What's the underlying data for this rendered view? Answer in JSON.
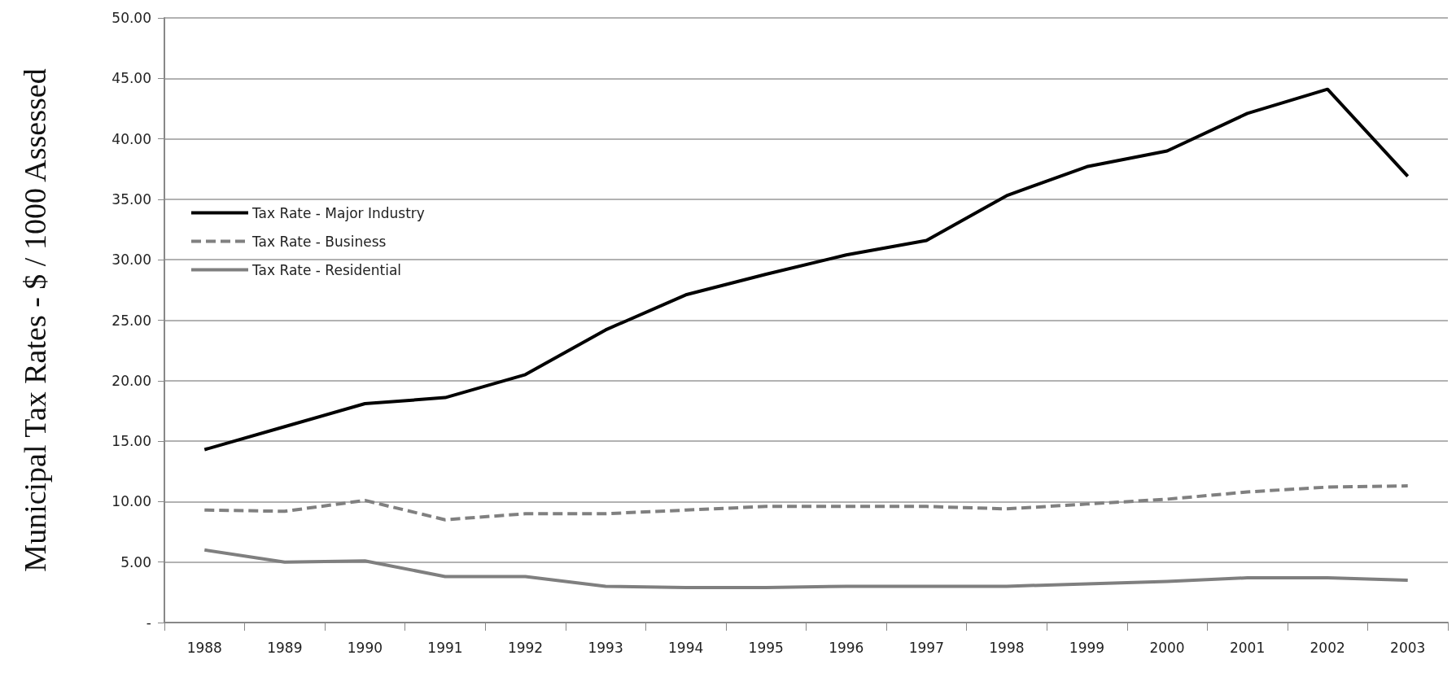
{
  "chart_data": {
    "type": "line",
    "ylabel": "Municipal Tax Rates - $ / 1000 Assessed",
    "categories": [
      "1988",
      "1989",
      "1990",
      "1991",
      "1992",
      "1993",
      "1994",
      "1995",
      "1996",
      "1997",
      "1998",
      "1999",
      "2000",
      "2001",
      "2002",
      "2003"
    ],
    "series": [
      {
        "name": "Tax Rate - Major Industry",
        "color": "#000000",
        "line_style": "solid",
        "values": [
          14.3,
          16.2,
          18.1,
          18.6,
          20.5,
          24.2,
          27.1,
          28.8,
          30.4,
          31.6,
          35.3,
          37.7,
          39.0,
          42.1,
          44.1,
          36.9
        ]
      },
      {
        "name": "Tax Rate - Business",
        "color": "#808080",
        "line_style": "dashed",
        "values": [
          9.3,
          9.2,
          10.1,
          8.5,
          9.0,
          9.0,
          9.3,
          9.6,
          9.6,
          9.6,
          9.4,
          9.8,
          10.2,
          10.8,
          11.2,
          11.3
        ]
      },
      {
        "name": "Tax Rate - Residential",
        "color": "#7f7f7f",
        "line_style": "solid",
        "values": [
          6.0,
          5.0,
          5.1,
          3.8,
          3.8,
          3.0,
          2.9,
          2.9,
          3.0,
          3.0,
          3.0,
          3.2,
          3.4,
          3.7,
          3.7,
          3.5
        ]
      }
    ],
    "ylim": [
      0,
      50
    ],
    "yticks": [
      {
        "value": 0,
        "label": "-"
      },
      {
        "value": 5,
        "label": "5.00"
      },
      {
        "value": 10,
        "label": "10.00"
      },
      {
        "value": 15,
        "label": "15.00"
      },
      {
        "value": 20,
        "label": "20.00"
      },
      {
        "value": 25,
        "label": "25.00"
      },
      {
        "value": 30,
        "label": "30.00"
      },
      {
        "value": 35,
        "label": "35.00"
      },
      {
        "value": 40,
        "label": "40.00"
      },
      {
        "value": 45,
        "label": "45.00"
      },
      {
        "value": 50,
        "label": "50.00"
      }
    ],
    "grid": "y",
    "legend": "left",
    "marker": "none"
  }
}
